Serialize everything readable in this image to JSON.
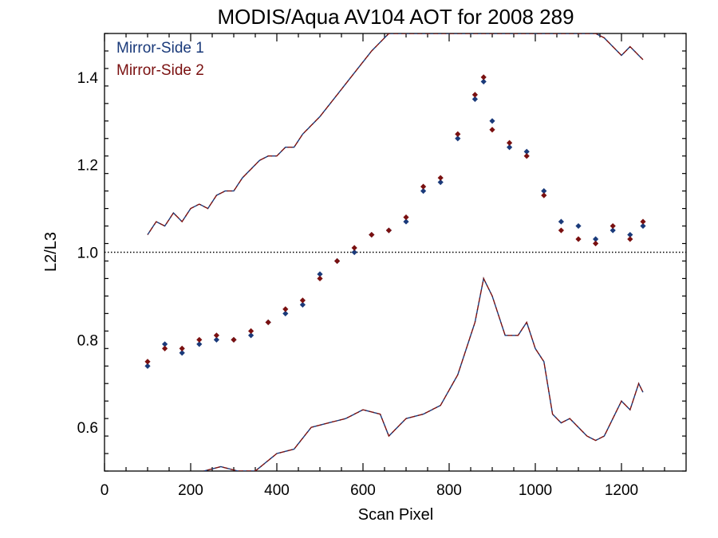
{
  "chart_data": {
    "type": "scatter",
    "title": "MODIS/Aqua AV104 AOT for 2008 289",
    "xlabel": "Scan Pixel",
    "ylabel": "L2/L3",
    "xlim": [
      0,
      1350
    ],
    "ylim": [
      0.5,
      1.5
    ],
    "x_ticks": [
      "0",
      "200",
      "400",
      "600",
      "800",
      "1000",
      "1200"
    ],
    "y_ticks": [
      "0.6",
      "0.8",
      "1.0",
      "1.2",
      "1.4"
    ],
    "reference_line": 1.0,
    "legend_position": "top-left",
    "series": [
      {
        "name": "Mirror-Side 1",
        "color": "#1a3a7a",
        "marker": "diamond",
        "x": [
          100,
          140,
          180,
          220,
          260,
          300,
          340,
          380,
          420,
          460,
          500,
          540,
          580,
          620,
          660,
          700,
          740,
          780,
          820,
          860,
          880,
          900,
          940,
          980,
          1020,
          1060,
          1100,
          1140,
          1180,
          1220,
          1250
        ],
        "y": [
          0.74,
          0.79,
          0.77,
          0.79,
          0.8,
          0.8,
          0.81,
          0.84,
          0.86,
          0.88,
          0.95,
          0.98,
          1.0,
          1.04,
          1.05,
          1.07,
          1.14,
          1.16,
          1.26,
          1.35,
          1.39,
          1.3,
          1.24,
          1.23,
          1.14,
          1.07,
          1.06,
          1.03,
          1.05,
          1.04,
          1.06
        ]
      },
      {
        "name": "Mirror-Side 2",
        "color": "#7a1010",
        "marker": "diamond",
        "x": [
          100,
          140,
          180,
          220,
          260,
          300,
          340,
          380,
          420,
          460,
          500,
          540,
          580,
          620,
          660,
          700,
          740,
          780,
          820,
          860,
          880,
          900,
          940,
          980,
          1020,
          1060,
          1100,
          1140,
          1180,
          1220,
          1250
        ],
        "y": [
          0.75,
          0.78,
          0.78,
          0.8,
          0.81,
          0.8,
          0.82,
          0.84,
          0.87,
          0.89,
          0.94,
          0.98,
          1.01,
          1.04,
          1.05,
          1.08,
          1.15,
          1.17,
          1.27,
          1.36,
          1.4,
          1.28,
          1.25,
          1.22,
          1.13,
          1.05,
          1.03,
          1.02,
          1.06,
          1.03,
          1.07
        ]
      }
    ],
    "envelope": {
      "style": "dashed",
      "upper": {
        "x": [
          100,
          120,
          140,
          160,
          180,
          200,
          220,
          240,
          260,
          280,
          300,
          320,
          340,
          360,
          380,
          400,
          420,
          440,
          460,
          480,
          500,
          540,
          580,
          620,
          660,
          1140,
          1160,
          1180,
          1200,
          1220,
          1240,
          1250
        ],
        "y": [
          1.04,
          1.07,
          1.06,
          1.09,
          1.07,
          1.1,
          1.11,
          1.1,
          1.13,
          1.14,
          1.14,
          1.17,
          1.19,
          1.21,
          1.22,
          1.22,
          1.24,
          1.24,
          1.27,
          1.29,
          1.31,
          1.36,
          1.41,
          1.46,
          1.5,
          1.5,
          1.49,
          1.47,
          1.45,
          1.47,
          1.45,
          1.44
        ]
      },
      "lower": {
        "x": [
          230,
          270,
          310,
          350,
          400,
          440,
          480,
          520,
          560,
          600,
          640,
          660,
          700,
          740,
          780,
          820,
          860,
          880,
          900,
          930,
          960,
          980,
          1000,
          1020,
          1040,
          1060,
          1080,
          1100,
          1120,
          1140,
          1160,
          1180,
          1200,
          1220,
          1240,
          1250
        ],
        "y": [
          0.5,
          0.51,
          0.5,
          0.5,
          0.54,
          0.55,
          0.6,
          0.61,
          0.62,
          0.64,
          0.63,
          0.58,
          0.62,
          0.63,
          0.65,
          0.72,
          0.84,
          0.94,
          0.9,
          0.81,
          0.81,
          0.84,
          0.78,
          0.75,
          0.63,
          0.61,
          0.62,
          0.6,
          0.58,
          0.57,
          0.58,
          0.62,
          0.66,
          0.64,
          0.7,
          0.68
        ]
      }
    }
  }
}
